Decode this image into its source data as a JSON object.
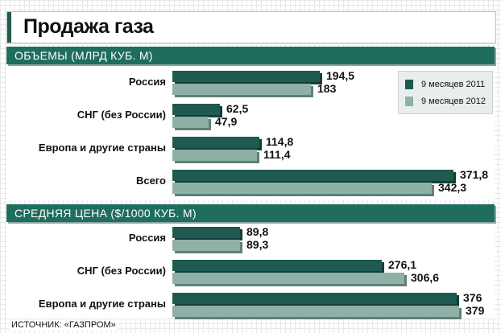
{
  "title": "Продажа газа",
  "source": "ИСТОЧНИК: «ГАЗПРОМ»",
  "colors": {
    "series_2011": "#1e5a4f",
    "series_2012": "#8fb0a6",
    "section": "#1f6d5d"
  },
  "legend": [
    "9 месяцев 2011",
    "9 месяцев 2012"
  ],
  "chart_data": [
    {
      "type": "bar",
      "orientation": "horizontal",
      "title": "ОБЪЕМЫ (МЛРД КУБ. М)",
      "categories": [
        "Россия",
        "СНГ (без России)",
        "Европа и другие страны",
        "Всего"
      ],
      "series": [
        {
          "name": "9 месяцев 2011",
          "values": [
            194.5,
            62.5,
            114.8,
            371.8
          ],
          "labels": [
            "194,5",
            "62,5",
            "114,8",
            "371,8"
          ]
        },
        {
          "name": "9 месяцев 2012",
          "values": [
            183,
            47.9,
            111.4,
            342.3
          ],
          "labels": [
            "183",
            "47,9",
            "111,4",
            "342,3"
          ]
        }
      ],
      "legend_position": "top-right"
    },
    {
      "type": "bar",
      "orientation": "horizontal",
      "title": "СРЕДНЯЯ ЦЕНА ($/1000 КУБ. М)",
      "categories": [
        "Россия",
        "СНГ (без России)",
        "Европа и другие страны"
      ],
      "series": [
        {
          "name": "9 месяцев 2011",
          "values": [
            89.8,
            276.1,
            376
          ],
          "labels": [
            "89,8",
            "276,1",
            "376"
          ]
        },
        {
          "name": "9 месяцев 2012",
          "values": [
            89.3,
            306.6,
            379
          ],
          "labels": [
            "89,3",
            "306,6",
            "379"
          ]
        }
      ]
    }
  ]
}
